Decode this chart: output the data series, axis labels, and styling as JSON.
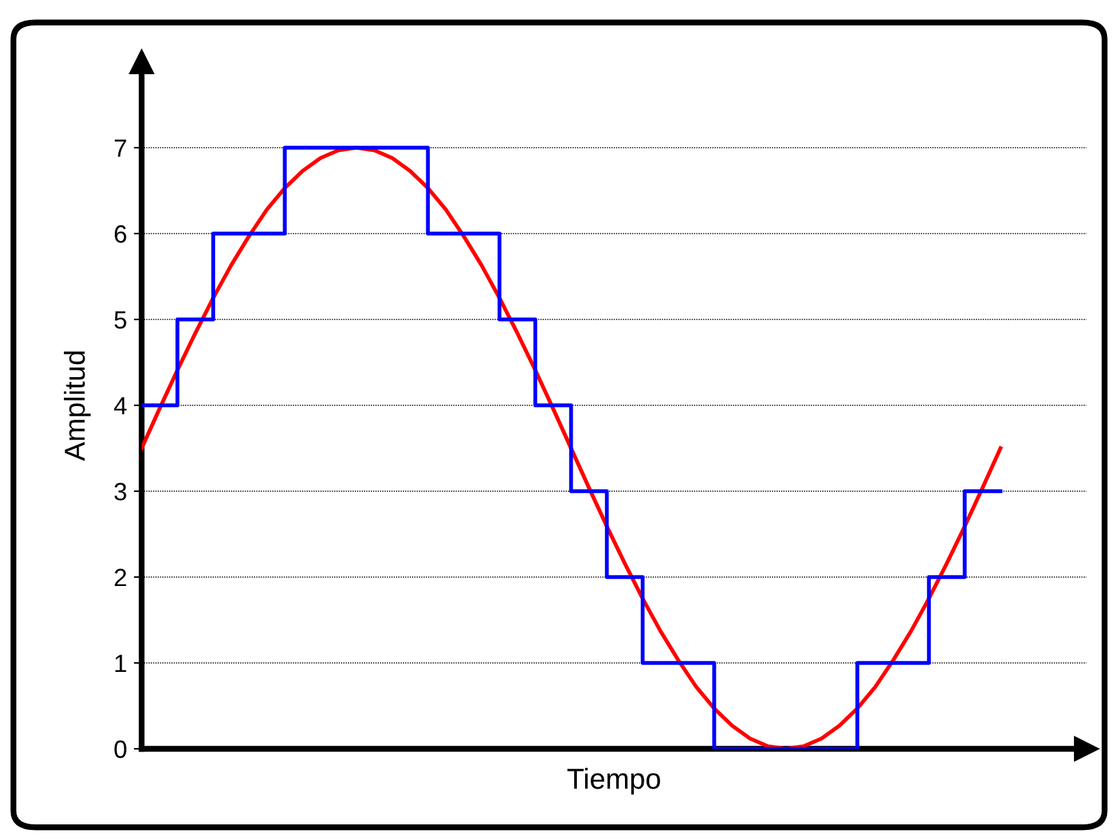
{
  "chart_data": {
    "type": "line",
    "xlabel": "Tiempo",
    "ylabel": "Amplitud",
    "categories": [
      null,
      null,
      null,
      null,
      null,
      null,
      null,
      null,
      null,
      null,
      null,
      null,
      null,
      null,
      null,
      null,
      null,
      null,
      null,
      null,
      null,
      null,
      null,
      null,
      null,
      null,
      null,
      null,
      null,
      null,
      null,
      null,
      null,
      null,
      null,
      null,
      null,
      null,
      null,
      null,
      null,
      null,
      null,
      null,
      null,
      null,
      null,
      null,
      null
    ],
    "series": [
      {
        "color": "#ff0000",
        "values": [
          3.5,
          3.96,
          4.41,
          4.84,
          5.25,
          5.63,
          5.97,
          6.28,
          6.53,
          6.73,
          6.88,
          6.97,
          7.0,
          6.97,
          6.88,
          6.73,
          6.53,
          6.28,
          5.97,
          5.63,
          5.25,
          4.84,
          4.41,
          3.96,
          3.5,
          3.04,
          2.59,
          2.16,
          1.75,
          1.37,
          1.03,
          0.72,
          0.47,
          0.27,
          0.12,
          0.03,
          0.0,
          0.03,
          0.12,
          0.27,
          0.47,
          0.72,
          1.03,
          1.37,
          1.75,
          2.16,
          2.59,
          3.04,
          3.5
        ]
      },
      {
        "type": "step",
        "color": "#0000ff",
        "values": [
          4,
          4,
          5,
          5,
          6,
          6,
          6,
          6,
          7,
          7,
          7,
          7,
          7,
          7,
          7,
          7,
          6,
          6,
          6,
          6,
          5,
          5,
          4,
          4,
          3,
          3,
          2,
          2,
          1,
          1,
          1,
          1,
          0,
          0,
          0,
          0,
          0,
          0,
          0,
          0,
          1,
          1,
          1,
          1,
          2,
          2,
          3,
          3,
          3
        ]
      }
    ],
    "ylim": [
      0,
      8
    ],
    "yticks": [
      0,
      1,
      2,
      3,
      4,
      5,
      6,
      7
    ],
    "grid": "y",
    "tick_labels": "y",
    "legend": false
  }
}
